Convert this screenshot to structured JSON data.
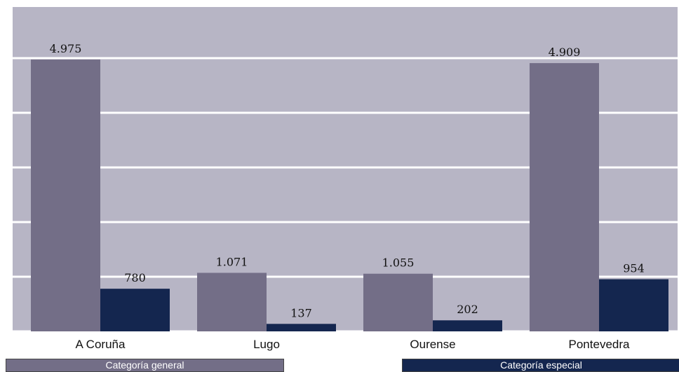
{
  "chart_data": {
    "type": "bar",
    "categories": [
      "A Coruña",
      "Lugo",
      "Ourense",
      "Pontevedra"
    ],
    "series": [
      {
        "name": "Categoría general",
        "values": [
          4975,
          1071,
          1055,
          4909
        ],
        "labels": [
          "4.975",
          "1.071",
          "1.055",
          "4.909"
        ]
      },
      {
        "name": "Categoría especial",
        "values": [
          780,
          137,
          202,
          954
        ],
        "labels": [
          "780",
          "137",
          "202",
          "954"
        ]
      }
    ],
    "ylim": [
      0,
      6000
    ],
    "grid": true,
    "legend_position": "bottom"
  },
  "colors": {
    "plot_background": "#b7b5c5",
    "gridline": "#ffffff",
    "series_general": "#736e87",
    "series_especial": "#14264f"
  }
}
